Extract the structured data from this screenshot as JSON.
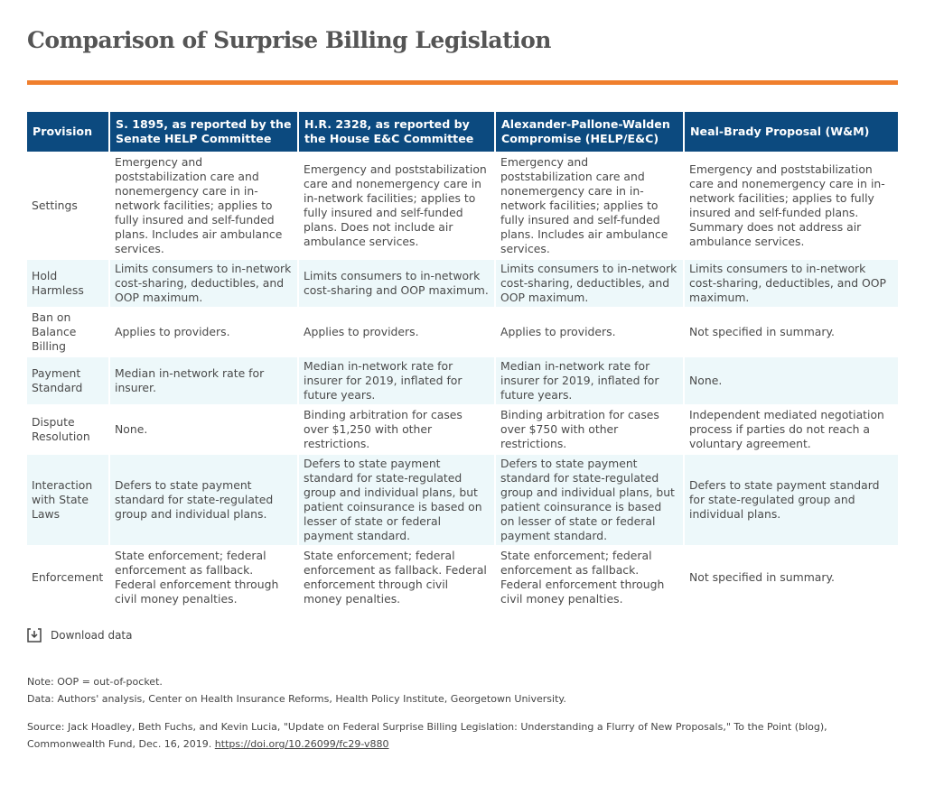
{
  "title": "Comparison of Surprise Billing Legislation",
  "colors": {
    "accent_rule": "#f07f2d",
    "header_bg": "#0c4a7f",
    "shade_row": "#edf8fa"
  },
  "table": {
    "headers": [
      "Provision",
      "S. 1895, as reported by the Senate HELP Committee",
      "H.R. 2328, as reported by the House E&C Committee",
      "Alexander-Pallone-Walden Compromise (HELP/E&C)",
      "Neal-Brady Proposal (W&M)"
    ],
    "rows": [
      [
        "Settings",
        "Emergency and poststabilization care and nonemergency care in in-network facilities; applies to fully insured and self-funded plans. Includes air ambulance services.",
        "Emergency and poststabilization care and nonemergency care in in-network facilities; applies to fully insured and self-funded plans. Does not include air ambulance services.",
        "Emergency and poststabilization care and nonemergency care in in-network facilities; applies to fully insured and self-funded plans. Includes air ambulance services.",
        "Emergency and poststabilization care and nonemergency care in in-network facilities; applies to fully insured and self-funded plans. Summary does not address air ambulance services."
      ],
      [
        "Hold Harmless",
        "Limits consumers to in-network cost-sharing, deductibles, and OOP maximum.",
        "Limits consumers to in-network cost-sharing and OOP maximum.",
        "Limits consumers to in-network cost-sharing, deductibles, and OOP maximum.",
        "Limits consumers to in-network cost-sharing, deductibles, and OOP maximum."
      ],
      [
        "Ban on Balance Billing",
        "Applies to providers.",
        "Applies to providers.",
        "Applies to providers.",
        "Not specified in summary."
      ],
      [
        "Payment Standard",
        "Median in-network rate for insurer.",
        "Median in-network rate for insurer for 2019, inflated for future years.",
        "Median in-network rate for insurer for 2019, inflated for future years.",
        "None."
      ],
      [
        "Dispute Resolution",
        "None.",
        "Binding arbitration for cases over $1,250 with other restrictions.",
        "Binding arbitration for cases over $750 with other restrictions.",
        "Independent mediated negotiation process if parties do not reach a voluntary agreement."
      ],
      [
        "Interaction with State Laws",
        "Defers to state payment standard for state-regulated group and individual plans.",
        "Defers to state payment standard for state-regulated group and individual plans, but patient coinsurance is based on lesser of state or federal payment standard.",
        "Defers to state payment standard for state-regulated group and individual plans, but patient coinsurance is based on lesser of state or federal payment standard.",
        "Defers to state payment standard for state-regulated group and individual plans."
      ],
      [
        "Enforcement",
        "State enforcement; federal enforcement as fallback. Federal enforcement through civil money penalties.",
        "State enforcement; federal enforcement as fallback. Federal enforcement through civil money penalties.",
        "State enforcement; federal enforcement as fallback. Federal enforcement through civil money penalties.",
        "Not specified in summary."
      ]
    ]
  },
  "download": {
    "label": "Download data",
    "icon": "download-icon"
  },
  "notes": {
    "note": "Note: OOP = out-of-pocket.",
    "data": "Data: Authors' analysis, Center on Health Insurance Reforms, Health Policy Institute, Georgetown University.",
    "source": "Source: Jack Hoadley, Beth Fuchs, and Kevin Lucia, \"Update on Federal Surprise Billing Legislation: Understanding a Flurry of New Proposals,\" To the Point (blog), Commonwealth Fund, Dec. 16, 2019. ",
    "link": "https://doi.org/10.26099/fc29-v880"
  }
}
